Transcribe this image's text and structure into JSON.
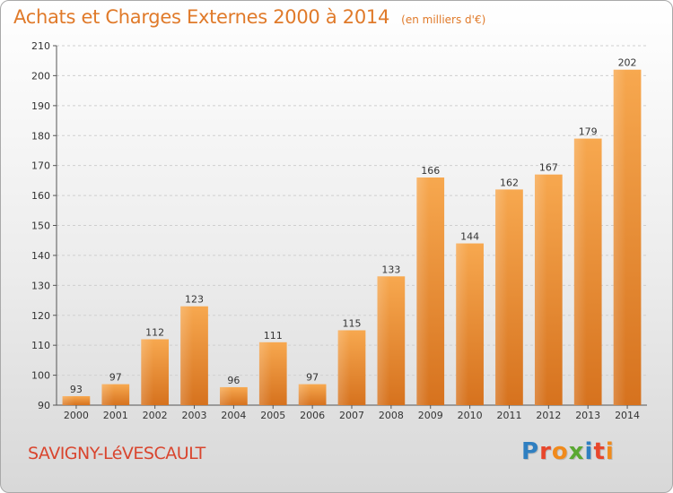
{
  "header": {
    "title": "Achats et Charges Externes 2000 à 2014",
    "unit": "(en milliers d'€)"
  },
  "footer": {
    "commune": "SAVIGNY-LéVESCAULT",
    "logo": "Proxiti"
  },
  "colors": {
    "accent": "#e07a2a",
    "bar_light": "#f6a54c",
    "bar_dark": "#d8741f",
    "commune_text": "#d9452e"
  },
  "chart_data": {
    "type": "bar",
    "title": "Achats et Charges Externes 2000 à 2014",
    "subtitle": "(en milliers d'€)",
    "xlabel": "",
    "ylabel": "",
    "categories": [
      "2000",
      "2001",
      "2002",
      "2003",
      "2004",
      "2005",
      "2006",
      "2007",
      "2008",
      "2009",
      "2010",
      "2011",
      "2012",
      "2013",
      "2014"
    ],
    "values": [
      93,
      97,
      112,
      123,
      96,
      111,
      97,
      115,
      133,
      166,
      144,
      162,
      167,
      179,
      202
    ],
    "ylim": [
      90,
      210
    ],
    "yticks": [
      90,
      100,
      110,
      120,
      130,
      140,
      150,
      160,
      170,
      180,
      190,
      200,
      210
    ],
    "grid": true,
    "legend": "none"
  }
}
